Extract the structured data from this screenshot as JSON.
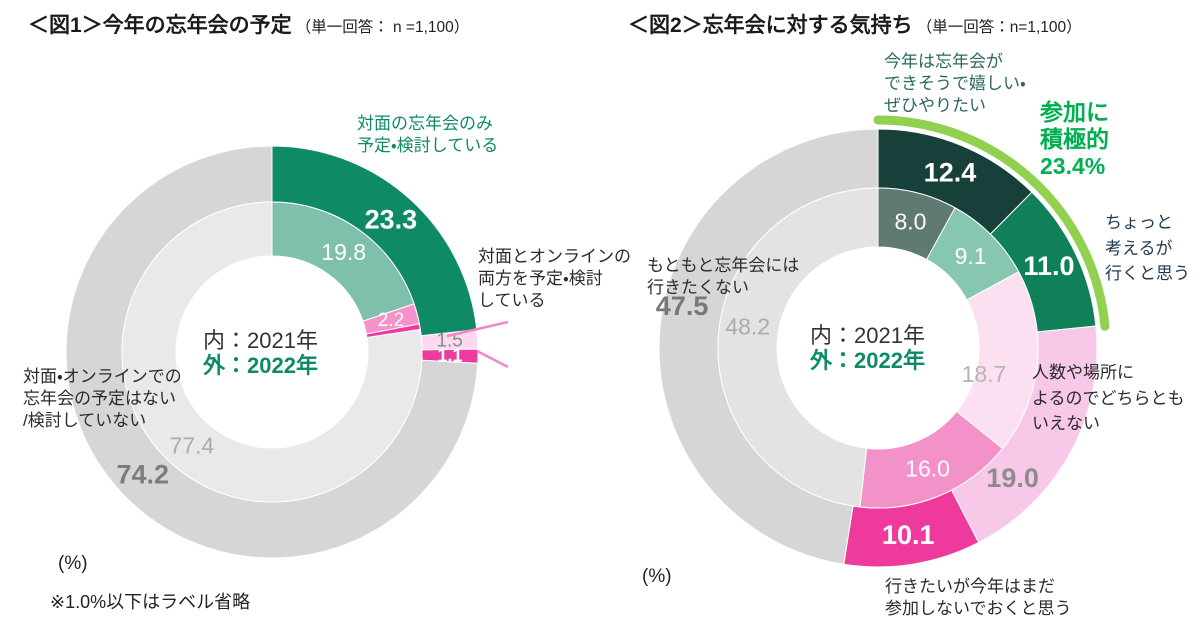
{
  "figure1": {
    "title": "＜図1＞今年の忘年会の予定",
    "title_note": "（単一回答： n =1,100）",
    "center_inner": "内：2021年",
    "center_outer": "外：2022年",
    "unit": "(%)",
    "footnote": "※1.0%以下はラベル省略",
    "labels": {
      "face_only": "対面の忘年会のみ\n予定・検討している",
      "both": "対面とオンラインの\n両方を予定・検討\nしている",
      "none": "対面・オンラインでの\n忘年会の予定はない\n/検討していない"
    }
  },
  "figure2": {
    "title": "＜図2＞忘年会に対する気持ち",
    "title_note": "（単一回答：n=1,100）",
    "center_inner": "内：2021年",
    "center_outer": "外：2022年",
    "unit": "(%)",
    "highlight_text": "参加に\n積極的\n23.4%",
    "labels": {
      "happy": "今年は忘年会が\nできそうで嬉しい・\nぜひやりたい",
      "consider": "ちょっと\n考えるが\n行くと思う",
      "depends": "人数や場所に\nよるのでどちらとも\nいえない",
      "skip": "行きたいが今年はまだ\n参加しないでおくと思う",
      "never": "もともと忘年会には\n行きたくない"
    }
  },
  "chart_data": [
    {
      "type": "donut",
      "title": "今年の忘年会の予定",
      "subtitle": "単一回答 n=1,100",
      "unit": "%",
      "note": "1.0%以下はラベル省略",
      "center_note": [
        "内：2021年",
        "外：2022年"
      ],
      "rings": [
        {
          "name": "2022年（外）",
          "segments": [
            {
              "category": "対面の忘年会のみ予定・検討している",
              "value": 23.3,
              "label": "23.3",
              "color": "#0f8a66",
              "label_color": "#ffffff"
            },
            {
              "category": "対面とオンラインの両方を予定・検討している",
              "value": 1.5,
              "label": "1.5",
              "color": "#fbd9ef",
              "label_color": "#8a8a8a"
            },
            {
              "category": "",
              "value": 1.1,
              "label": "1.1",
              "color": "#ef3a9f",
              "label_color": "#ffffff"
            },
            {
              "category": "対面・オンラインでの忘年会の予定はない/検討していない",
              "value": 74.2,
              "label": "74.2",
              "color": "#d6d6d6",
              "label_color": "#7d7d7d"
            }
          ]
        },
        {
          "name": "2021年（内）",
          "segments": [
            {
              "category": "対面の忘年会のみ予定・検討している",
              "value": 19.8,
              "label": "19.8",
              "color": "#7fc0ad",
              "label_color": "#ffffff"
            },
            {
              "category": "対面とオンラインの両方を予定・検討している",
              "value": 2.2,
              "label": "2.2",
              "color": "#f492c9",
              "label_color": "#ffffff"
            },
            {
              "category": "",
              "value": 0.6,
              "label": "",
              "color": "#ef3a9f",
              "label_color": "#ffffff"
            },
            {
              "category": "対面・オンラインでの忘年会の予定はない/検討していない",
              "value": 77.4,
              "label": "77.4",
              "color": "#ababab",
              "label_color": "#ababab",
              "fill": "#e9e9e9"
            }
          ]
        }
      ]
    },
    {
      "type": "donut",
      "title": "忘年会に対する気持ち",
      "subtitle": "単一回答 n=1,100",
      "unit": "%",
      "center_note": [
        "内：2021年",
        "外：2022年"
      ],
      "highlight": {
        "label": "参加に積極的",
        "percent": 23.4,
        "arc_color": "#92d050",
        "text_color": "#00b050"
      },
      "rings": [
        {
          "name": "2022年（外）",
          "segments": [
            {
              "category": "今年は忘年会ができそうで嬉しい・ぜひやりたい",
              "value": 12.4,
              "label": "12.4",
              "color": "#17403a",
              "label_color": "#ffffff"
            },
            {
              "category": "ちょっと考えるが行くと思う",
              "value": 11.0,
              "label": "11.0",
              "color": "#108059",
              "label_color": "#ffffff"
            },
            {
              "category": "人数や場所によるのでどちらともいえない",
              "value": 19.0,
              "label": "19.0",
              "color": "#f8c8e8",
              "label_color": "#8c8c8c"
            },
            {
              "category": "行きたいが今年はまだ参加しないでおくと思う",
              "value": 10.1,
              "label": "10.1",
              "color": "#ee3a9d",
              "label_color": "#ffffff"
            },
            {
              "category": "もともと忘年会には行きたくない",
              "value": 47.5,
              "label": "47.5",
              "color": "#d6d6d6",
              "label_color": "#787878"
            }
          ]
        },
        {
          "name": "2021年（内）",
          "segments": [
            {
              "category": "今年は忘年会ができそうで嬉しい・ぜひやりたい",
              "value": 8.0,
              "label": "8.0",
              "color": "#5e7a73",
              "label_color": "#ffffff"
            },
            {
              "category": "ちょっと考えるが行くと思う",
              "value": 9.1,
              "label": "9.1",
              "color": "#87c7b0",
              "label_color": "#ffffff"
            },
            {
              "category": "人数や場所によるのでどちらともいえない",
              "value": 18.7,
              "label": "18.7",
              "color": "#fbe0f1",
              "label_color": "#b5b5b5"
            },
            {
              "category": "行きたいが今年はまだ参加しないでおくと思う",
              "value": 16.0,
              "label": "16.0",
              "color": "#f392c9",
              "label_color": "#ffffff"
            },
            {
              "category": "もともと忘年会には行きたくない",
              "value": 48.2,
              "label": "48.2",
              "color": "#e3e3e3",
              "label_color": "#ababab"
            }
          ]
        }
      ]
    }
  ]
}
